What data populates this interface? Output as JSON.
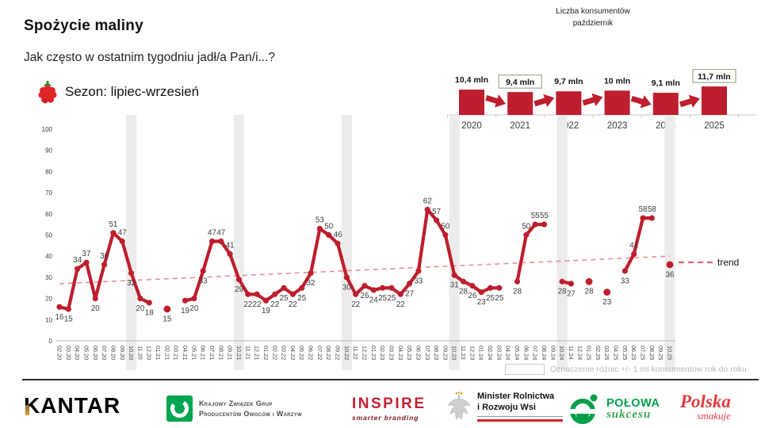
{
  "header": {
    "title": "Spożycie maliny",
    "question": "Jak często w ostatnim tygodniu jadł/a Pan/i...?",
    "season_label": "Sezon: lipiec-wrzesień"
  },
  "legend_note": "Oznaczenie różnic +/- 1 ml konsumentów rok do roku",
  "chart_data": [
    {
      "type": "line",
      "title": "Spożycie maliny",
      "color": "#be1e2d",
      "ylim": [
        0,
        100
      ],
      "y_ticks": [
        0,
        10,
        20,
        30,
        40,
        50,
        60,
        70,
        80,
        90,
        100
      ],
      "x": [
        "02.20",
        "03.20",
        "04.20",
        "05.20",
        "06.20",
        "07.20",
        "08.20",
        "09.20",
        "10.20",
        "11.20",
        "12.20",
        "01.21",
        "02.21",
        "03.21",
        "04.21",
        "05.21",
        "06.21",
        "07.21",
        "08.21",
        "09.21",
        "10.21",
        "11.21",
        "12.21",
        "01.22",
        "02.22",
        "03.22",
        "04.22",
        "05.22",
        "06.22",
        "07.22",
        "08.22",
        "09.22",
        "10.22",
        "11.22",
        "12.22",
        "01.23",
        "02.23",
        "03.23",
        "04.23",
        "05.23",
        "06.23",
        "07.23",
        "08.23",
        "09.23",
        "10.23",
        "11.23",
        "12.23",
        "01.24",
        "02.24",
        "03.24",
        "04.24",
        "05.24",
        "06.24",
        "07.24",
        "08.24",
        "09.24",
        "10.24",
        "11.24",
        "12.24",
        "01.25",
        "02.25",
        "03.25",
        "04.25",
        "05.25",
        "06.25",
        "07.25",
        "08.25",
        "09.25",
        "10.25"
      ],
      "values": [
        16,
        15,
        34,
        37,
        20,
        36,
        51,
        47,
        32,
        20,
        18,
        null,
        15,
        null,
        19,
        20,
        33,
        47,
        47,
        41,
        29,
        22,
        22,
        19,
        22,
        25,
        22,
        25,
        32,
        53,
        50,
        46,
        30,
        22,
        26,
        24,
        25,
        25,
        22,
        27,
        33,
        62,
        57,
        50,
        31,
        28,
        26,
        23,
        25,
        25,
        null,
        28,
        50,
        55,
        55,
        null,
        28,
        27,
        null,
        28,
        null,
        23,
        null,
        33,
        41,
        58,
        58,
        null,
        36
      ],
      "highlighted_months": [
        "10.20",
        "10.21",
        "10.22",
        "10.23",
        "10.24",
        "10.25"
      ],
      "trend": {
        "label": "trend",
        "start": 27,
        "end": 40
      }
    },
    {
      "type": "bar",
      "title": "Liczba konsumentów październik",
      "title_line1": "Liczba konsumentów",
      "title_line2": "październik",
      "color": "#be1e2d",
      "categories": [
        "2020",
        "2021",
        "2022",
        "2023",
        "2024",
        "2025"
      ],
      "values": [
        10.4,
        9.4,
        9.7,
        10,
        9.1,
        11.7
      ],
      "labels": [
        "10,4 mln",
        "9,4 mln",
        "9,7 mln",
        "10 mln",
        "9,1 mln",
        "11,7 mln"
      ],
      "boxed": [
        false,
        true,
        false,
        false,
        false,
        true
      ]
    }
  ],
  "footer": {
    "kantar": {
      "text": "KANTAR"
    },
    "kzg": {
      "line1": "Krajowy Związek Grup",
      "line2": "Producentów Owoców i Warzyw"
    },
    "inspire": {
      "text": "INSPIRE",
      "tagline": "smarter branding"
    },
    "ministry": {
      "line1": "Minister Rolnictwa",
      "line2": "i Rozwoju Wsi"
    },
    "polowa": {
      "line1": "POŁOWA",
      "line2": "sukcesu"
    },
    "polska": {
      "line1": "Polska",
      "line2": "smakuje"
    }
  }
}
